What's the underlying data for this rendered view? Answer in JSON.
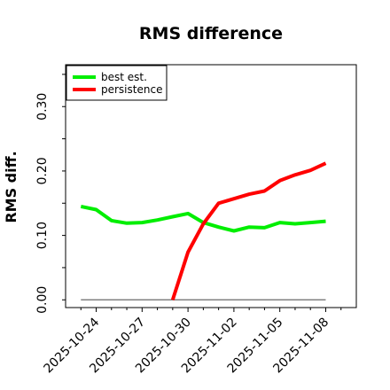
{
  "chart_data": {
    "type": "line",
    "title": "RMS difference",
    "xlabel": "",
    "ylabel": "RMS diff.",
    "x_ticks": [
      "2025-10-24",
      "2025-10-27",
      "2025-10-30",
      "2025-11-02",
      "2025-11-05",
      "2025-11-08"
    ],
    "y_ticks": [
      "0.00",
      "0.10",
      "0.20",
      "0.30"
    ],
    "y_tick_values": [
      0.0,
      0.1,
      0.2,
      0.3
    ],
    "xlim": [
      "2025-10-22",
      "2025-11-10"
    ],
    "ylim": [
      -0.012,
      0.365
    ],
    "grid": false,
    "legend_position": "top-left",
    "baseline": {
      "color": "#808080",
      "x": [
        "2025-10-23",
        "2025-11-08"
      ],
      "values": [
        0.0,
        0.0
      ]
    },
    "series": [
      {
        "name": "best est.",
        "color": "#00ee00",
        "x": [
          "2025-10-23",
          "2025-10-24",
          "2025-10-25",
          "2025-10-26",
          "2025-10-27",
          "2025-10-28",
          "2025-10-29",
          "2025-10-30",
          "2025-10-31",
          "2025-11-01",
          "2025-11-02",
          "2025-11-03",
          "2025-11-04",
          "2025-11-05",
          "2025-11-06",
          "2025-11-07",
          "2025-11-08"
        ],
        "values": [
          0.145,
          0.14,
          0.123,
          0.119,
          0.12,
          0.124,
          0.129,
          0.134,
          0.12,
          0.113,
          0.107,
          0.113,
          0.112,
          0.12,
          0.118,
          0.12,
          0.122
        ]
      },
      {
        "name": "persistence",
        "color": "#ff0000",
        "x": [
          "2025-10-29",
          "2025-10-30",
          "2025-10-31",
          "2025-11-01",
          "2025-11-02",
          "2025-11-03",
          "2025-11-04",
          "2025-11-05",
          "2025-11-06",
          "2025-11-07",
          "2025-11-08"
        ],
        "values": [
          0.0,
          0.074,
          0.118,
          0.15,
          0.157,
          0.164,
          0.169,
          0.185,
          0.194,
          0.201,
          0.212
        ]
      }
    ]
  }
}
